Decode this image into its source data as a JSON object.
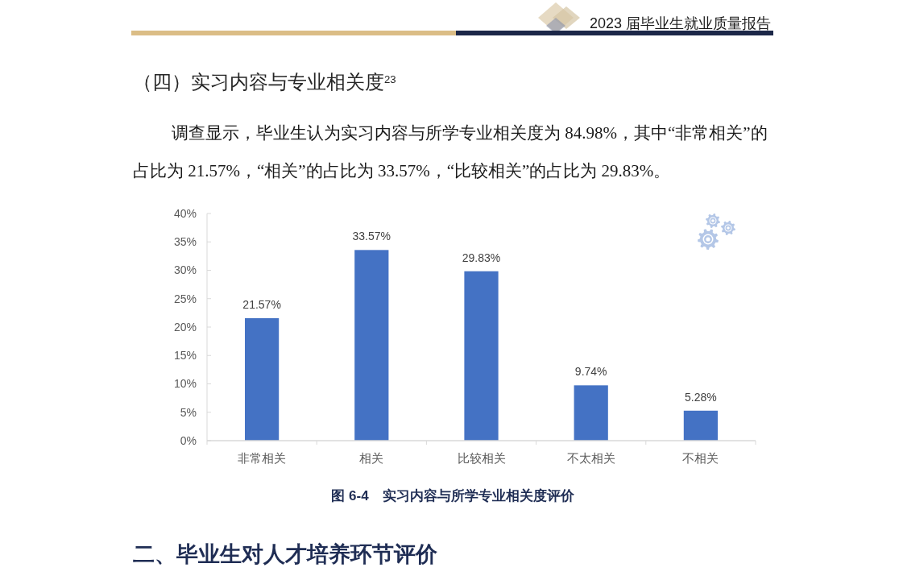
{
  "chart_data": {
    "type": "bar",
    "title": "图 6-4　实习内容与所学专业相关度评价",
    "annotations": [
      "2023 届毕业生就业质量报告",
      "（四）实习内容与专业相关度$^{23}$",
      "调查显示，毕业生认为实习内容与所学专业相关度为 84.98%，其中“非常相关”的占比为 21.57%，“相关”的占比为 33.57%，“比较相关”的占比为 29.83%。",
      "二、毕业生对人才培养环节评价"
    ],
    "categories": [
      "非常相关",
      "相关",
      "比较相关",
      "不太相关",
      "不相关"
    ],
    "values": [
      21.57,
      33.57,
      29.83,
      9.74,
      5.28
    ],
    "value_labels": [
      "21.57%",
      "33.57%",
      "29.83%",
      "9.74%",
      "5.28%"
    ],
    "color": "#4472c4",
    "ylim": [
      0,
      40
    ],
    "yticks": [
      {
        "value": 0,
        "label": "0%"
      },
      {
        "value": 5,
        "label": "5%"
      },
      {
        "value": 10,
        "label": "10%"
      },
      {
        "value": 15,
        "label": "15%"
      },
      {
        "value": 20,
        "label": "20%"
      },
      {
        "value": 25,
        "label": "25%"
      },
      {
        "value": 30,
        "label": "30%"
      },
      {
        "value": 35,
        "label": "35%"
      },
      {
        "value": 40,
        "label": "40%"
      }
    ]
  }
}
